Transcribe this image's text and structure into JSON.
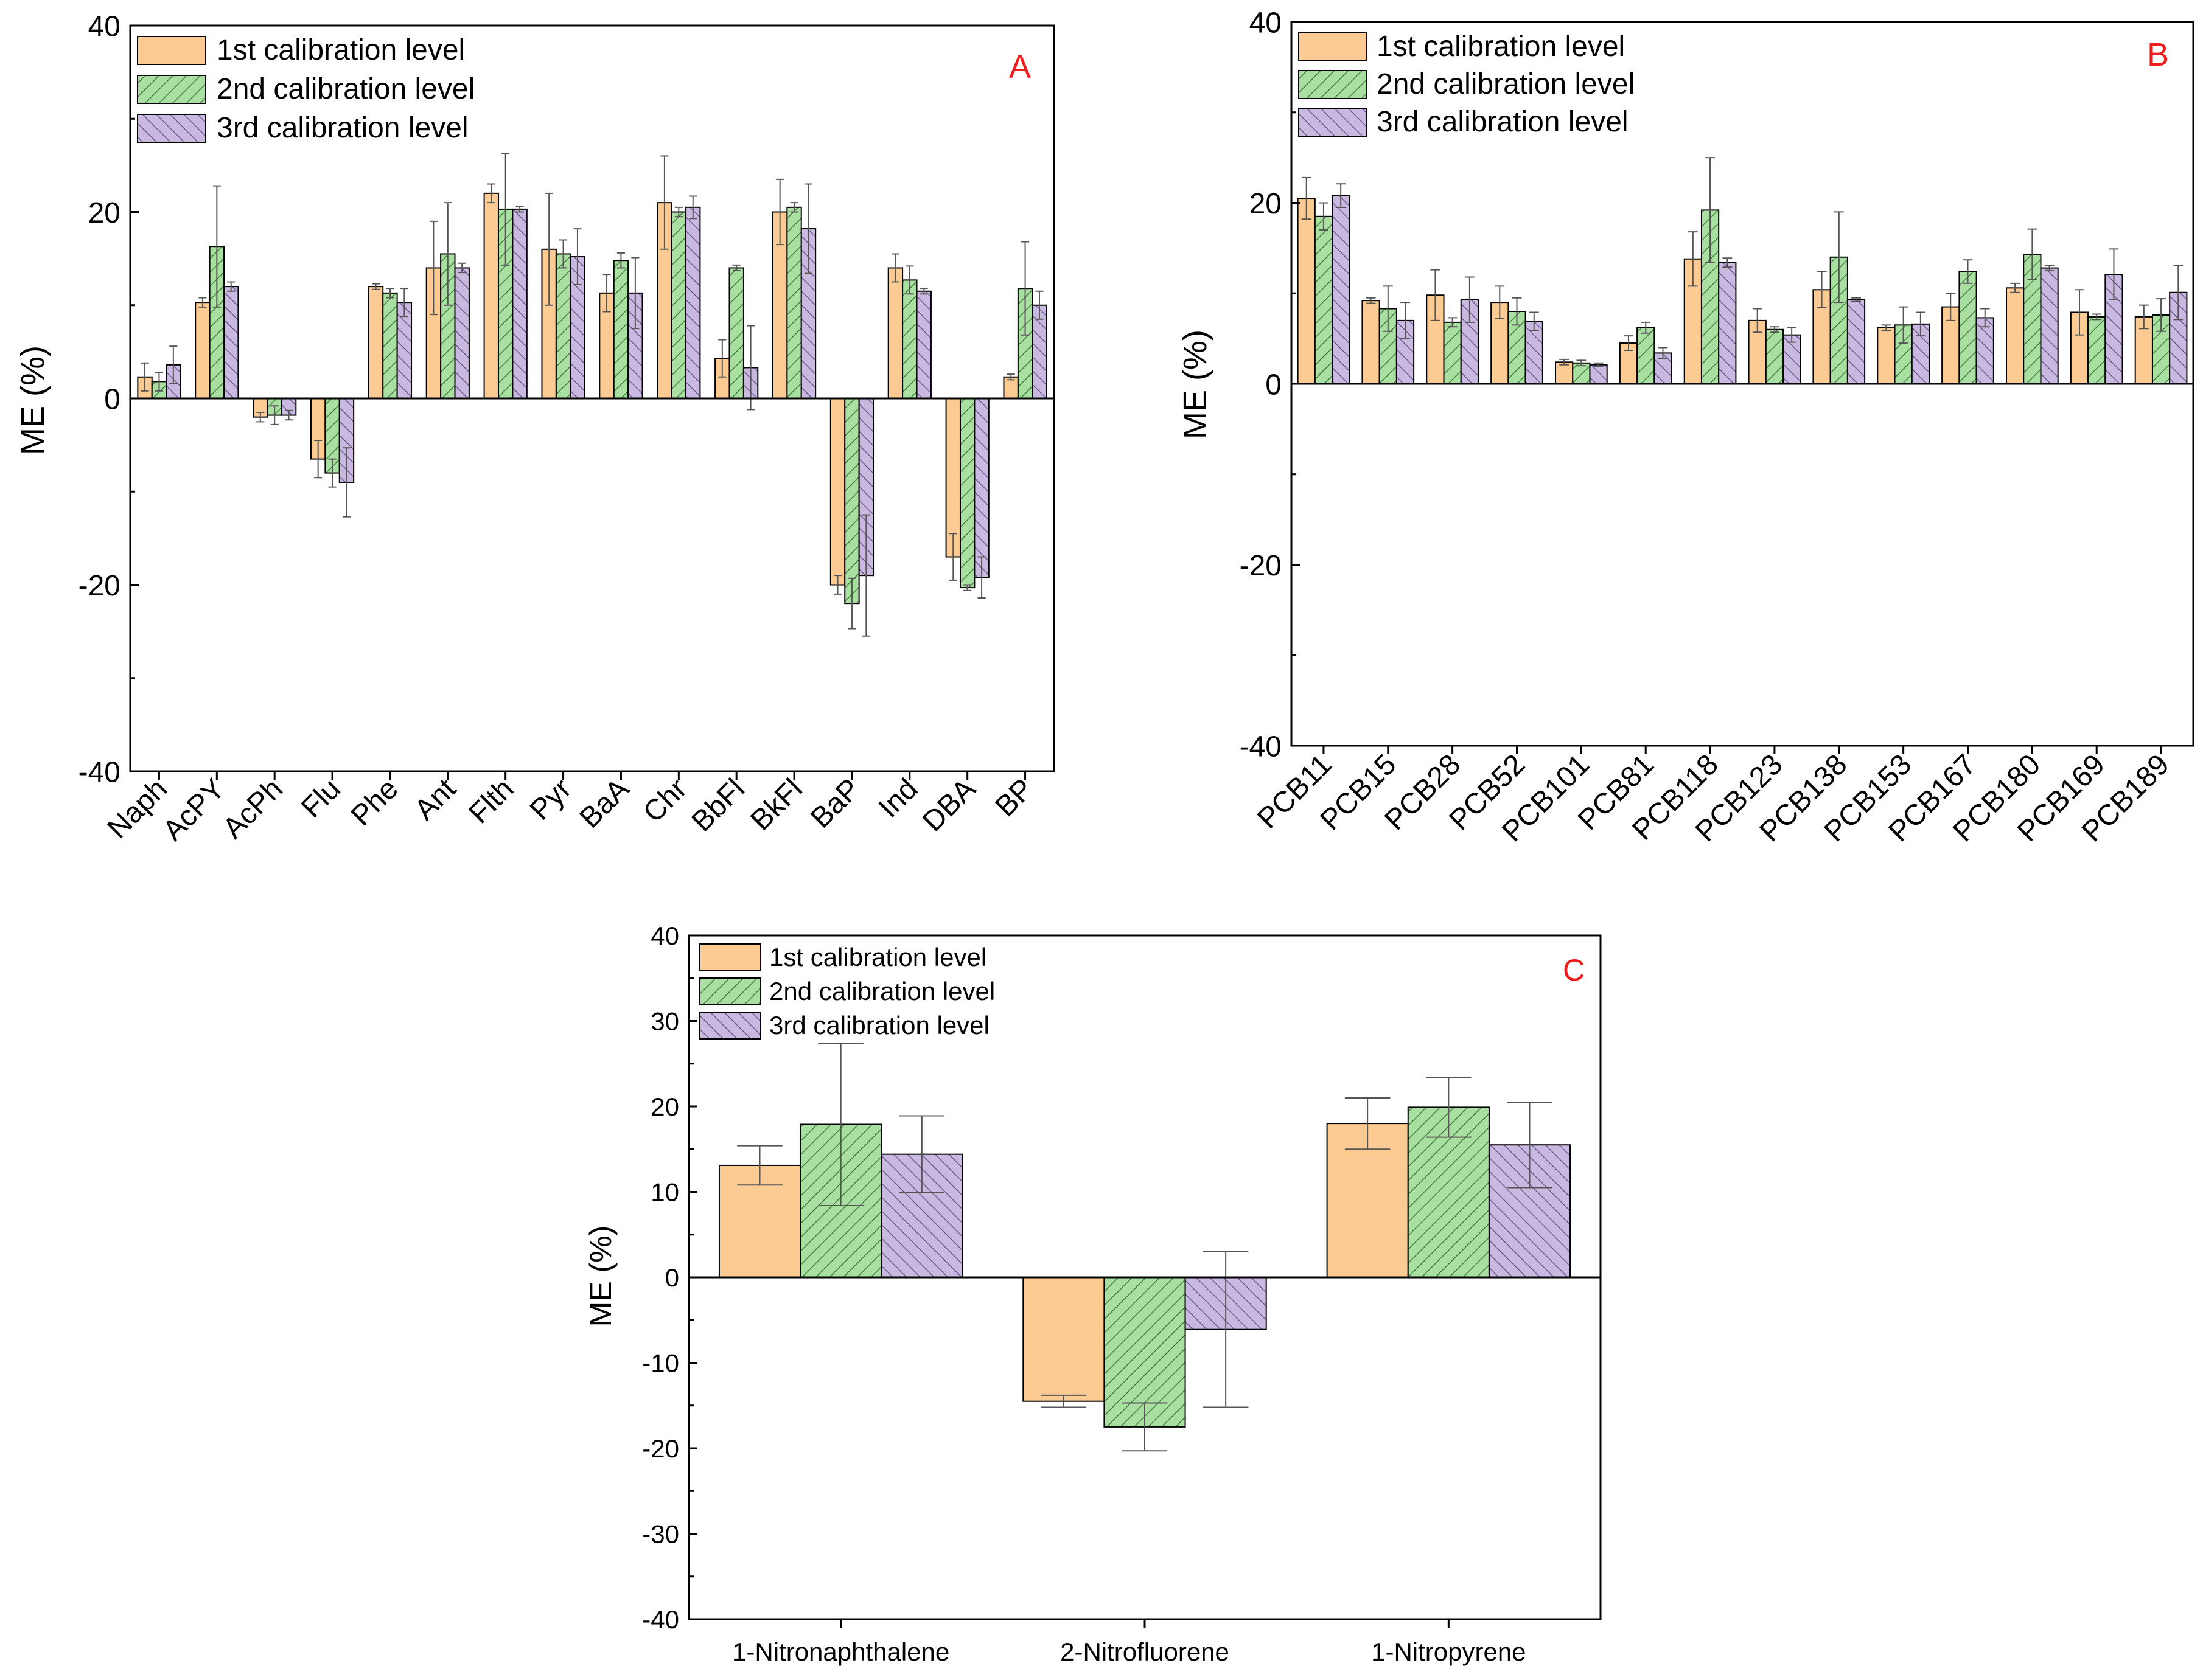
{
  "series_styles": [
    {
      "name": "1st calibration level",
      "fill": "#fccb93",
      "pattern": "none"
    },
    {
      "name": "2nd calibration level",
      "fill": "#a9dfa1",
      "pattern": "diag-right"
    },
    {
      "name": "3rd calibration level",
      "fill": "#c9b8e0",
      "pattern": "diag-left"
    }
  ],
  "chart_data": [
    {
      "panel": "A",
      "type": "bar",
      "ylabel": "ME (%)",
      "ylim": [
        -40,
        40
      ],
      "yticks": [
        -40,
        -20,
        0,
        20,
        40
      ],
      "xlabel_rotation": "rotated",
      "categories": [
        "Naph",
        "AcPY",
        "AcPh",
        "Flu",
        "Phe",
        "Ant",
        "Flth",
        "Pyr",
        "BaA",
        "Chr",
        "BbFl",
        "BkFl",
        "BaP",
        "Ind",
        "DBA",
        "BP"
      ],
      "series": [
        {
          "name": "1st calibration level",
          "values": [
            2.3,
            10.3,
            -2.0,
            -6.5,
            12.0,
            14.0,
            22.0,
            16.0,
            11.3,
            21.0,
            4.3,
            20.0,
            -20.0,
            14.0,
            -17.0,
            2.3
          ],
          "errors": [
            1.5,
            0.5,
            0.5,
            2.0,
            0.3,
            5.0,
            1.0,
            6.0,
            2.0,
            5.0,
            2.0,
            3.5,
            1.0,
            1.5,
            2.5,
            0.3
          ]
        },
        {
          "name": "2nd calibration level",
          "values": [
            1.8,
            16.3,
            -1.8,
            -8.0,
            11.3,
            15.5,
            20.3,
            15.5,
            14.8,
            20.0,
            14.0,
            20.5,
            -22.0,
            12.7,
            -20.3,
            11.8
          ],
          "errors": [
            1.0,
            6.5,
            1.0,
            1.5,
            0.5,
            5.5,
            6.0,
            1.5,
            0.8,
            0.5,
            0.3,
            0.5,
            2.7,
            1.5,
            0.3,
            5.0
          ]
        },
        {
          "name": "3rd calibration level",
          "values": [
            3.6,
            12.0,
            -1.8,
            -9.0,
            10.3,
            14.0,
            20.3,
            15.2,
            11.3,
            20.5,
            3.3,
            18.2,
            -19.0,
            11.5,
            -19.2,
            10.0
          ],
          "errors": [
            2.0,
            0.5,
            0.5,
            3.7,
            1.5,
            0.5,
            0.3,
            3.0,
            3.8,
            1.2,
            4.5,
            4.8,
            6.5,
            0.3,
            2.2,
            1.5
          ]
        }
      ]
    },
    {
      "panel": "B",
      "type": "bar",
      "ylabel": "ME (%)",
      "ylim": [
        -40,
        40
      ],
      "yticks": [
        -40,
        -20,
        0,
        20,
        40
      ],
      "xlabel_rotation": "rotated",
      "categories": [
        "PCB11",
        "PCB15",
        "PCB28",
        "PCB52",
        "PCB101",
        "PCB81",
        "PCB118",
        "PCB123",
        "PCB138",
        "PCB153",
        "PCB167",
        "PCB180",
        "PCB169",
        "PCB189"
      ],
      "series": [
        {
          "name": "1st calibration level",
          "values": [
            20.5,
            9.2,
            9.8,
            9.0,
            2.4,
            4.5,
            13.8,
            7.0,
            10.4,
            6.2,
            8.5,
            10.6,
            7.9,
            7.4
          ],
          "errors": [
            2.3,
            0.3,
            2.8,
            1.8,
            0.3,
            0.8,
            3.0,
            1.3,
            2.0,
            0.3,
            1.5,
            0.5,
            2.5,
            1.3
          ]
        },
        {
          "name": "2nd calibration level",
          "values": [
            18.5,
            8.3,
            6.8,
            8.0,
            2.3,
            6.2,
            19.2,
            6.0,
            14.0,
            6.5,
            12.4,
            14.3,
            7.4,
            7.6
          ],
          "errors": [
            1.5,
            2.5,
            0.5,
            1.5,
            0.3,
            0.6,
            5.8,
            0.3,
            5.0,
            2.0,
            1.3,
            2.8,
            0.3,
            1.8
          ]
        },
        {
          "name": "3rd calibration level",
          "values": [
            20.8,
            7.0,
            9.3,
            6.9,
            2.1,
            3.4,
            13.4,
            5.4,
            9.3,
            6.6,
            7.3,
            12.8,
            12.1,
            10.1
          ],
          "errors": [
            1.3,
            2.0,
            2.5,
            1.0,
            0.2,
            0.6,
            0.5,
            0.8,
            0.2,
            1.3,
            1.0,
            0.3,
            2.8,
            3.0
          ]
        }
      ]
    },
    {
      "panel": "C",
      "type": "bar",
      "ylabel": "ME (%)",
      "ylim": [
        -40,
        40
      ],
      "yticks": [
        -40,
        -30,
        -20,
        -10,
        0,
        10,
        20,
        30,
        40
      ],
      "xlabel_rotation": "horizontal",
      "categories": [
        "1-Nitronaphthalene",
        "2-Nitrofluorene",
        "1-Nitropyrene"
      ],
      "series": [
        {
          "name": "1st calibration level",
          "values": [
            13.1,
            -14.5,
            18.0
          ],
          "errors": [
            2.3,
            0.7,
            3.0
          ]
        },
        {
          "name": "2nd calibration level",
          "values": [
            17.9,
            -17.5,
            19.9
          ],
          "errors": [
            9.5,
            2.8,
            3.5
          ]
        },
        {
          "name": "3rd calibration level",
          "values": [
            14.4,
            -6.1,
            15.5
          ],
          "errors": [
            4.5,
            9.1,
            5.0
          ]
        }
      ]
    }
  ]
}
